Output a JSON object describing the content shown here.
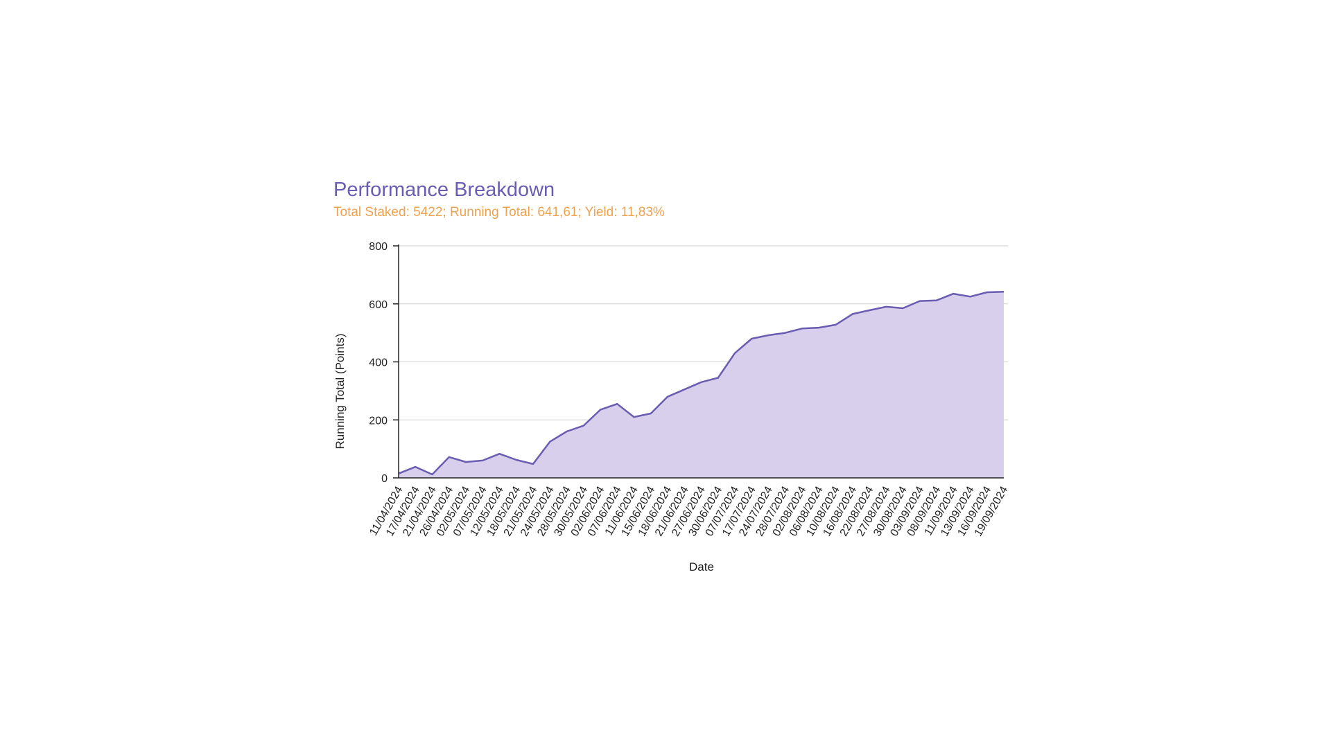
{
  "chart_data": {
    "type": "area",
    "title": "Performance Breakdown",
    "subtitle": "Total Staked: 5422; Running Total: 641,61; Yield: 11,83%",
    "xlabel": "Date",
    "ylabel": "Running Total (Points)",
    "ylim": [
      0,
      800
    ],
    "yticks": [
      0,
      200,
      400,
      600,
      800
    ],
    "grid": true,
    "legend": "none",
    "colors": {
      "line": "#6a5cb1",
      "fill": "#d7cfec",
      "title": "#6a5cb1",
      "subtitle": "#f0a24e"
    },
    "x": [
      "11/04/2024",
      "17/04/2024",
      "21/04/2024",
      "26/04/2024",
      "02/05/2024",
      "07/05/2024",
      "12/05/2024",
      "18/05/2024",
      "21/05/2024",
      "24/05/2024",
      "28/05/2024",
      "30/05/2024",
      "02/06/2024",
      "07/06/2024",
      "11/06/2024",
      "15/06/2024",
      "18/06/2024",
      "21/06/2024",
      "27/06/2024",
      "30/06/2024",
      "07/07/2024",
      "17/07/2024",
      "24/07/2024",
      "28/07/2024",
      "02/08/2024",
      "06/08/2024",
      "10/08/2024",
      "16/08/2024",
      "22/08/2024",
      "27/08/2024",
      "30/08/2024",
      "03/09/2024",
      "08/09/2024",
      "11/09/2024",
      "13/09/2024",
      "16/09/2024",
      "19/09/2024"
    ],
    "series": [
      {
        "values": [
          15,
          38,
          12,
          72,
          55,
          60,
          83,
          62,
          48,
          125,
          160,
          180,
          235,
          255,
          210,
          222,
          280,
          305,
          330,
          345,
          430,
          480,
          492,
          500,
          515,
          518,
          528,
          565,
          578,
          590,
          585,
          610,
          612,
          635,
          625,
          640,
          641.61
        ]
      }
    ]
  }
}
